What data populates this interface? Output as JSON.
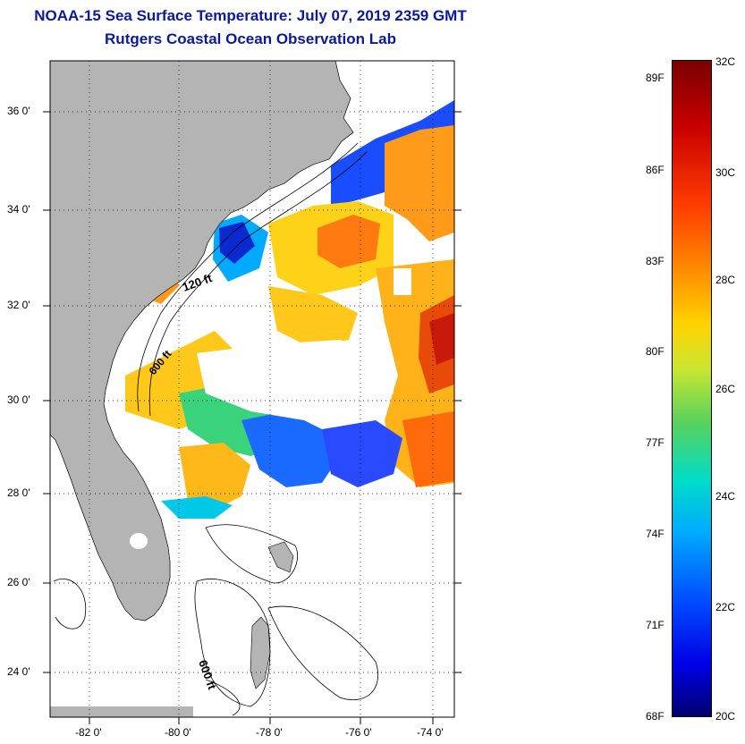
{
  "header": {
    "title": "NOAA-15 Sea Surface Temperature:  July 07, 2019 2359 GMT",
    "subtitle": "Rutgers Coastal Ocean Observation Lab"
  },
  "map": {
    "lat_labels": [
      "36 0'",
      "34 0'",
      "32 0'",
      "30 0'",
      "28 0'",
      "26 0'",
      "24 0'"
    ],
    "lon_labels": [
      "-82 0'",
      "-80 0'",
      "-78 0'",
      "-76 0'",
      "-74 0'"
    ],
    "contour_labels": [
      "120 ft",
      "600 ft",
      "600 ft"
    ],
    "land_color": "#b4b4b4",
    "grid": "dotted"
  },
  "colorbar": {
    "fahrenheit_labels": [
      "89F",
      "86F",
      "83F",
      "80F",
      "77F",
      "74F",
      "71F",
      "68F"
    ],
    "celsius_labels": [
      "32C",
      "30C",
      "28C",
      "26C",
      "24C",
      "22C",
      "20C"
    ],
    "colors": [
      "#7a0000",
      "#c80000",
      "#ff3c00",
      "#ff8c00",
      "#ffd200",
      "#c8e632",
      "#5ad25a",
      "#00dcc8",
      "#00aaff",
      "#0050ff",
      "#0000e6",
      "#00006e"
    ]
  }
}
